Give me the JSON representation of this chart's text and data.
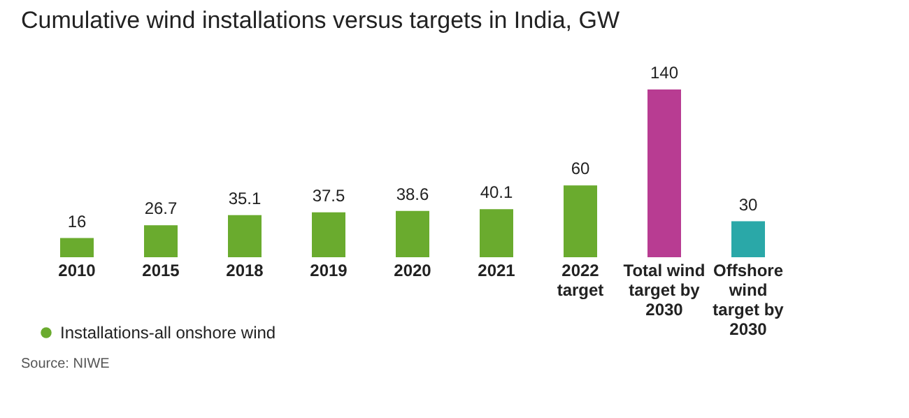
{
  "chart_data": {
    "type": "bar",
    "title": "Cumulative wind installations versus targets in India, GW",
    "categories": [
      "2010",
      "2015",
      "2018",
      "2019",
      "2020",
      "2021",
      "2022 target",
      "Total wind target by 2030",
      "Offshore wind target by 2030"
    ],
    "series": [
      {
        "name": "Installations-all onshore wind",
        "color": "#6aab2e",
        "values": [
          16,
          26.7,
          35.1,
          37.5,
          38.6,
          40.1,
          60,
          null,
          null
        ]
      },
      {
        "colors": [
          null,
          null,
          null,
          null,
          null,
          null,
          null,
          "#b83c92",
          "#2aa8a8"
        ],
        "values": [
          null,
          null,
          null,
          null,
          null,
          null,
          null,
          140,
          30
        ]
      }
    ],
    "data_labels": true,
    "legend": "bottom left",
    "annotations": [
      "Source: NIWE"
    ]
  }
}
